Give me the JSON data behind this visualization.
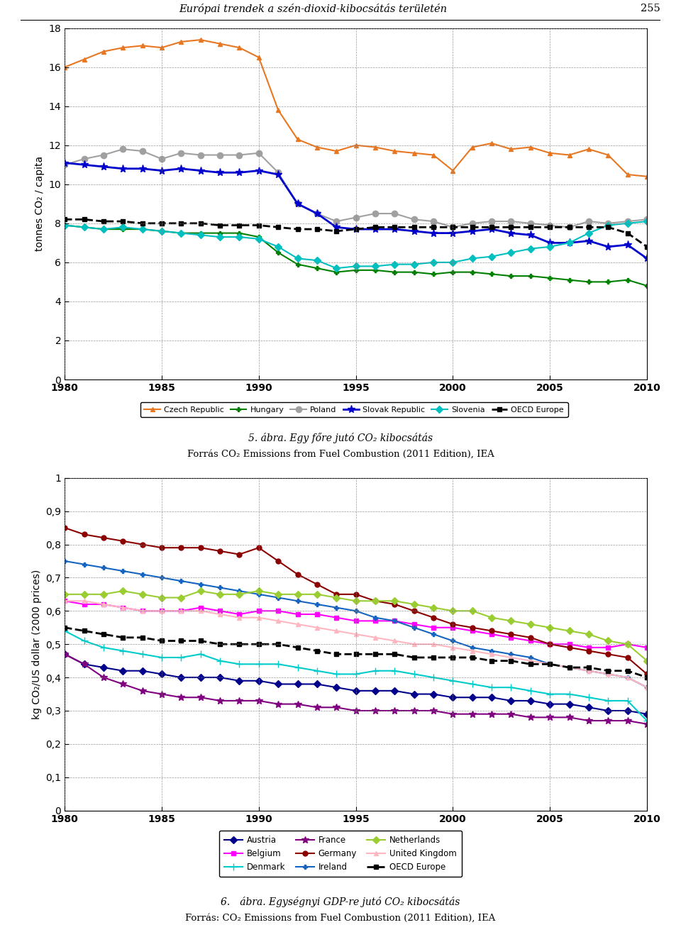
{
  "page_header": "Európai trendek a szén-dioxid-kibocsátás területén",
  "page_number": "255",
  "chart1": {
    "ylabel": "tonnes CO₂ / capita",
    "ylim": [
      0,
      18
    ],
    "yticks": [
      0,
      2,
      4,
      6,
      8,
      10,
      12,
      14,
      16,
      18
    ],
    "xlim": [
      1980,
      2010
    ],
    "xticks": [
      1980,
      1985,
      1990,
      1995,
      2000,
      2005,
      2010
    ],
    "caption_line1": "5. ábra. Egy főre jutó CO₂ kibocsátás",
    "caption_line2": "Forrás CO₂ Emissions from Fuel Combustion (2011 Edition), IEA",
    "series": {
      "Czech Republic": {
        "color": "#E87722",
        "marker": "^",
        "linestyle": "-",
        "linewidth": 1.5,
        "markersize": 5,
        "values": [
          16.0,
          16.4,
          16.8,
          17.0,
          17.1,
          17.0,
          17.3,
          17.4,
          17.2,
          17.0,
          16.5,
          13.8,
          12.3,
          11.9,
          11.7,
          12.0,
          11.9,
          11.7,
          11.6,
          11.5,
          10.7,
          11.9,
          12.1,
          11.8,
          11.9,
          11.6,
          11.5,
          11.8,
          11.5,
          10.5,
          10.4
        ]
      },
      "Hungary": {
        "color": "#008000",
        "marker": "P",
        "linestyle": "-",
        "linewidth": 1.5,
        "markersize": 5,
        "values": [
          7.9,
          7.8,
          7.7,
          7.7,
          7.7,
          7.6,
          7.5,
          7.5,
          7.5,
          7.5,
          7.3,
          6.5,
          5.9,
          5.7,
          5.5,
          5.6,
          5.6,
          5.5,
          5.5,
          5.4,
          5.5,
          5.5,
          5.4,
          5.3,
          5.3,
          5.2,
          5.1,
          5.0,
          5.0,
          5.1,
          4.8
        ]
      },
      "Poland": {
        "color": "#A0A0A0",
        "marker": "o",
        "linestyle": "-",
        "linewidth": 1.5,
        "markersize": 6,
        "values": [
          11.0,
          11.3,
          11.5,
          11.8,
          11.7,
          11.3,
          11.6,
          11.5,
          11.5,
          11.5,
          11.6,
          10.6,
          9.0,
          8.5,
          8.1,
          8.3,
          8.5,
          8.5,
          8.2,
          8.1,
          7.8,
          8.0,
          8.1,
          8.1,
          8.0,
          7.9,
          7.8,
          8.1,
          8.0,
          8.1,
          8.2
        ]
      },
      "Slovak Republic": {
        "color": "#0000CC",
        "marker": "*",
        "linestyle": "-",
        "linewidth": 2.0,
        "markersize": 8,
        "values": [
          11.1,
          11.0,
          10.9,
          10.8,
          10.8,
          10.7,
          10.8,
          10.7,
          10.6,
          10.6,
          10.7,
          10.5,
          9.0,
          8.5,
          7.8,
          7.7,
          7.7,
          7.7,
          7.6,
          7.5,
          7.5,
          7.6,
          7.7,
          7.5,
          7.4,
          7.0,
          7.0,
          7.1,
          6.8,
          6.9,
          6.2
        ]
      },
      "Slovenia": {
        "color": "#00BFBF",
        "marker": "D",
        "linestyle": "-",
        "linewidth": 1.5,
        "markersize": 5,
        "values": [
          7.9,
          7.8,
          7.7,
          7.8,
          7.7,
          7.6,
          7.5,
          7.4,
          7.3,
          7.3,
          7.2,
          6.8,
          6.2,
          6.1,
          5.7,
          5.8,
          5.8,
          5.9,
          5.9,
          6.0,
          6.0,
          6.2,
          6.3,
          6.5,
          6.7,
          6.8,
          7.0,
          7.5,
          7.9,
          8.0,
          8.1
        ]
      },
      "OECD Europe": {
        "color": "#000000",
        "marker": "s",
        "linestyle": "--",
        "linewidth": 2.0,
        "markersize": 4,
        "values": [
          8.2,
          8.2,
          8.1,
          8.1,
          8.0,
          8.0,
          8.0,
          8.0,
          7.9,
          7.9,
          7.9,
          7.8,
          7.7,
          7.7,
          7.6,
          7.7,
          7.8,
          7.8,
          7.8,
          7.8,
          7.8,
          7.8,
          7.8,
          7.8,
          7.8,
          7.8,
          7.8,
          7.8,
          7.8,
          7.5,
          6.8
        ]
      }
    }
  },
  "chart2": {
    "ylabel": "kg CO₂/US dollar (2000 prices)",
    "ylim": [
      0,
      1.0
    ],
    "yticks": [
      0,
      0.1,
      0.2,
      0.3,
      0.4,
      0.5,
      0.6,
      0.7,
      0.8,
      0.9,
      1.0
    ],
    "ytick_labels": [
      "0",
      "0,1",
      "0,2",
      "0,3",
      "0,4",
      "0,5",
      "0,6",
      "0,7",
      "0,8",
      "0,9",
      "1"
    ],
    "xlim": [
      1980,
      2010
    ],
    "xticks": [
      1980,
      1985,
      1990,
      1995,
      2000,
      2005,
      2010
    ],
    "caption_line1": "6.  ábra. Egységnyi GDP-re jutó CO₂ kibocsátás",
    "caption_line2": "Forrás: CO₂ Emissions from Fuel Combustion (2011 Edition), IEA",
    "series": {
      "Austria": {
        "color": "#00008B",
        "marker": "D",
        "linestyle": "-",
        "linewidth": 1.5,
        "markersize": 5,
        "values": [
          0.47,
          0.44,
          0.43,
          0.42,
          0.42,
          0.41,
          0.4,
          0.4,
          0.4,
          0.39,
          0.39,
          0.38,
          0.38,
          0.38,
          0.37,
          0.36,
          0.36,
          0.36,
          0.35,
          0.35,
          0.34,
          0.34,
          0.34,
          0.33,
          0.33,
          0.32,
          0.32,
          0.31,
          0.3,
          0.3,
          0.29
        ]
      },
      "Belgium": {
        "color": "#FF00FF",
        "marker": "s",
        "linestyle": "-",
        "linewidth": 1.5,
        "markersize": 5,
        "values": [
          0.63,
          0.62,
          0.62,
          0.61,
          0.6,
          0.6,
          0.6,
          0.61,
          0.6,
          0.59,
          0.6,
          0.6,
          0.59,
          0.59,
          0.58,
          0.57,
          0.57,
          0.57,
          0.56,
          0.55,
          0.55,
          0.54,
          0.53,
          0.52,
          0.51,
          0.5,
          0.5,
          0.49,
          0.49,
          0.5,
          0.49
        ]
      },
      "Denmark": {
        "color": "#00CCCC",
        "marker": "+",
        "linestyle": "-",
        "linewidth": 1.5,
        "markersize": 7,
        "values": [
          0.54,
          0.51,
          0.49,
          0.48,
          0.47,
          0.46,
          0.46,
          0.47,
          0.45,
          0.44,
          0.44,
          0.44,
          0.43,
          0.42,
          0.41,
          0.41,
          0.42,
          0.42,
          0.41,
          0.4,
          0.39,
          0.38,
          0.37,
          0.37,
          0.36,
          0.35,
          0.35,
          0.34,
          0.33,
          0.33,
          0.27
        ]
      },
      "France": {
        "color": "#800080",
        "marker": "*",
        "linestyle": "-",
        "linewidth": 1.5,
        "markersize": 7,
        "values": [
          0.47,
          0.44,
          0.4,
          0.38,
          0.36,
          0.35,
          0.34,
          0.34,
          0.33,
          0.33,
          0.33,
          0.32,
          0.32,
          0.31,
          0.31,
          0.3,
          0.3,
          0.3,
          0.3,
          0.3,
          0.29,
          0.29,
          0.29,
          0.29,
          0.28,
          0.28,
          0.28,
          0.27,
          0.27,
          0.27,
          0.26
        ]
      },
      "Germany": {
        "color": "#8B0000",
        "marker": "o",
        "linestyle": "-",
        "linewidth": 1.5,
        "markersize": 5,
        "values": [
          0.85,
          0.83,
          0.82,
          0.81,
          0.8,
          0.79,
          0.79,
          0.79,
          0.78,
          0.77,
          0.79,
          0.75,
          0.71,
          0.68,
          0.65,
          0.65,
          0.63,
          0.62,
          0.6,
          0.58,
          0.56,
          0.55,
          0.54,
          0.53,
          0.52,
          0.5,
          0.49,
          0.48,
          0.47,
          0.46,
          0.41
        ]
      },
      "Ireland": {
        "color": "#1565C0",
        "marker": "P",
        "linestyle": "-",
        "linewidth": 1.5,
        "markersize": 5,
        "values": [
          0.75,
          0.74,
          0.73,
          0.72,
          0.71,
          0.7,
          0.69,
          0.68,
          0.67,
          0.66,
          0.65,
          0.64,
          0.63,
          0.62,
          0.61,
          0.6,
          0.58,
          0.57,
          0.55,
          0.53,
          0.51,
          0.49,
          0.48,
          0.47,
          0.46,
          0.44,
          0.43,
          0.42,
          0.41,
          0.4,
          0.37
        ]
      },
      "Netherlands": {
        "color": "#9ACD32",
        "marker": "D",
        "linestyle": "-",
        "linewidth": 1.5,
        "markersize": 5,
        "values": [
          0.65,
          0.65,
          0.65,
          0.66,
          0.65,
          0.64,
          0.64,
          0.66,
          0.65,
          0.65,
          0.66,
          0.65,
          0.65,
          0.65,
          0.64,
          0.63,
          0.63,
          0.63,
          0.62,
          0.61,
          0.6,
          0.6,
          0.58,
          0.57,
          0.56,
          0.55,
          0.54,
          0.53,
          0.51,
          0.5,
          0.45
        ]
      },
      "United Kingdom": {
        "color": "#FFB6C1",
        "marker": "^",
        "linestyle": "-",
        "linewidth": 1.5,
        "markersize": 5,
        "values": [
          0.63,
          0.63,
          0.62,
          0.61,
          0.6,
          0.6,
          0.6,
          0.6,
          0.59,
          0.58,
          0.58,
          0.57,
          0.56,
          0.55,
          0.54,
          0.53,
          0.52,
          0.51,
          0.5,
          0.5,
          0.49,
          0.48,
          0.47,
          0.46,
          0.45,
          0.44,
          0.43,
          0.42,
          0.41,
          0.4,
          0.37
        ]
      },
      "OECD Europe": {
        "color": "#000000",
        "marker": "s",
        "linestyle": "--",
        "linewidth": 2.0,
        "markersize": 4,
        "values": [
          0.55,
          0.54,
          0.53,
          0.52,
          0.52,
          0.51,
          0.51,
          0.51,
          0.5,
          0.5,
          0.5,
          0.5,
          0.49,
          0.48,
          0.47,
          0.47,
          0.47,
          0.47,
          0.46,
          0.46,
          0.46,
          0.46,
          0.45,
          0.45,
          0.44,
          0.44,
          0.43,
          0.43,
          0.42,
          0.42,
          0.4
        ]
      }
    }
  }
}
